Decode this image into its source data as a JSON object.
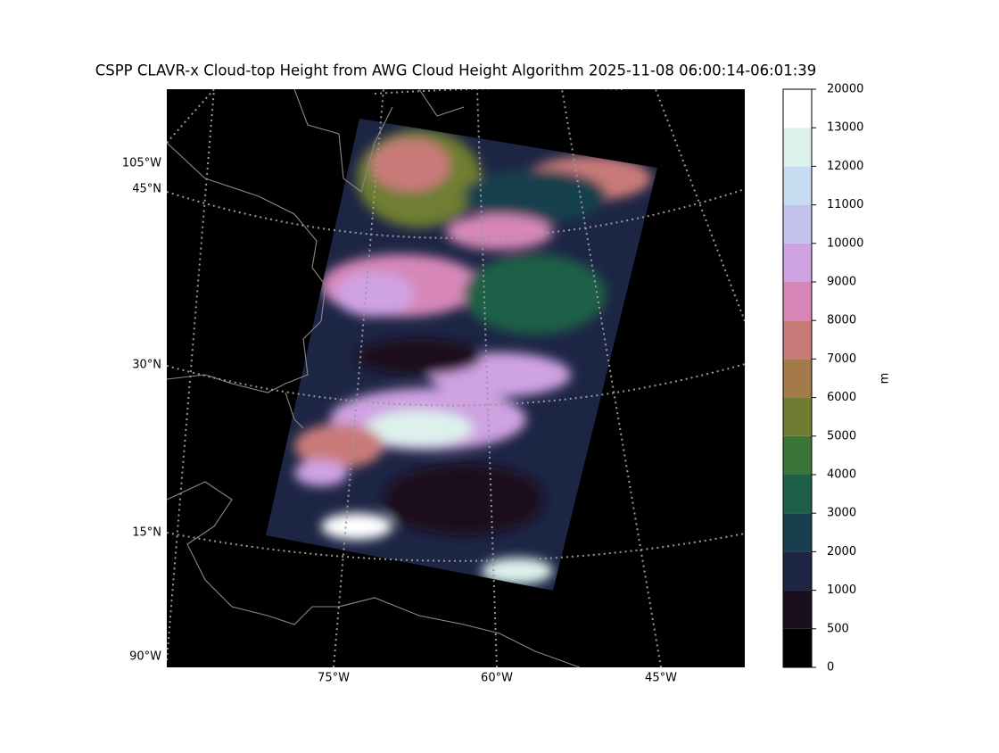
{
  "title": "CSPP CLAVR-x Cloud-top Height from AWG Cloud Height Algorithm 2025-11-08 06:00:14-06:01:39",
  "map": {
    "lon_labels_left": [
      "105°W",
      "90°W"
    ],
    "lat_labels": [
      "45°N",
      "30°N",
      "15°N"
    ],
    "lon_labels_bottom": [
      "75°W",
      "60°W",
      "45°W"
    ]
  },
  "colorbar": {
    "label": "m",
    "ticks": [
      0,
      500,
      1000,
      2000,
      3000,
      4000,
      5000,
      6000,
      7000,
      8000,
      9000,
      10000,
      11000,
      12000,
      13000,
      20000
    ],
    "colors": [
      "#000000",
      "#1a0f1f",
      "#1d2545",
      "#173f4e",
      "#1d6047",
      "#3a7535",
      "#6f7d33",
      "#a47a4a",
      "#c87a78",
      "#d687b8",
      "#cfa2e2",
      "#c4c3f0",
      "#c6ddf1",
      "#dcf1ec",
      "#ffffff"
    ]
  }
}
